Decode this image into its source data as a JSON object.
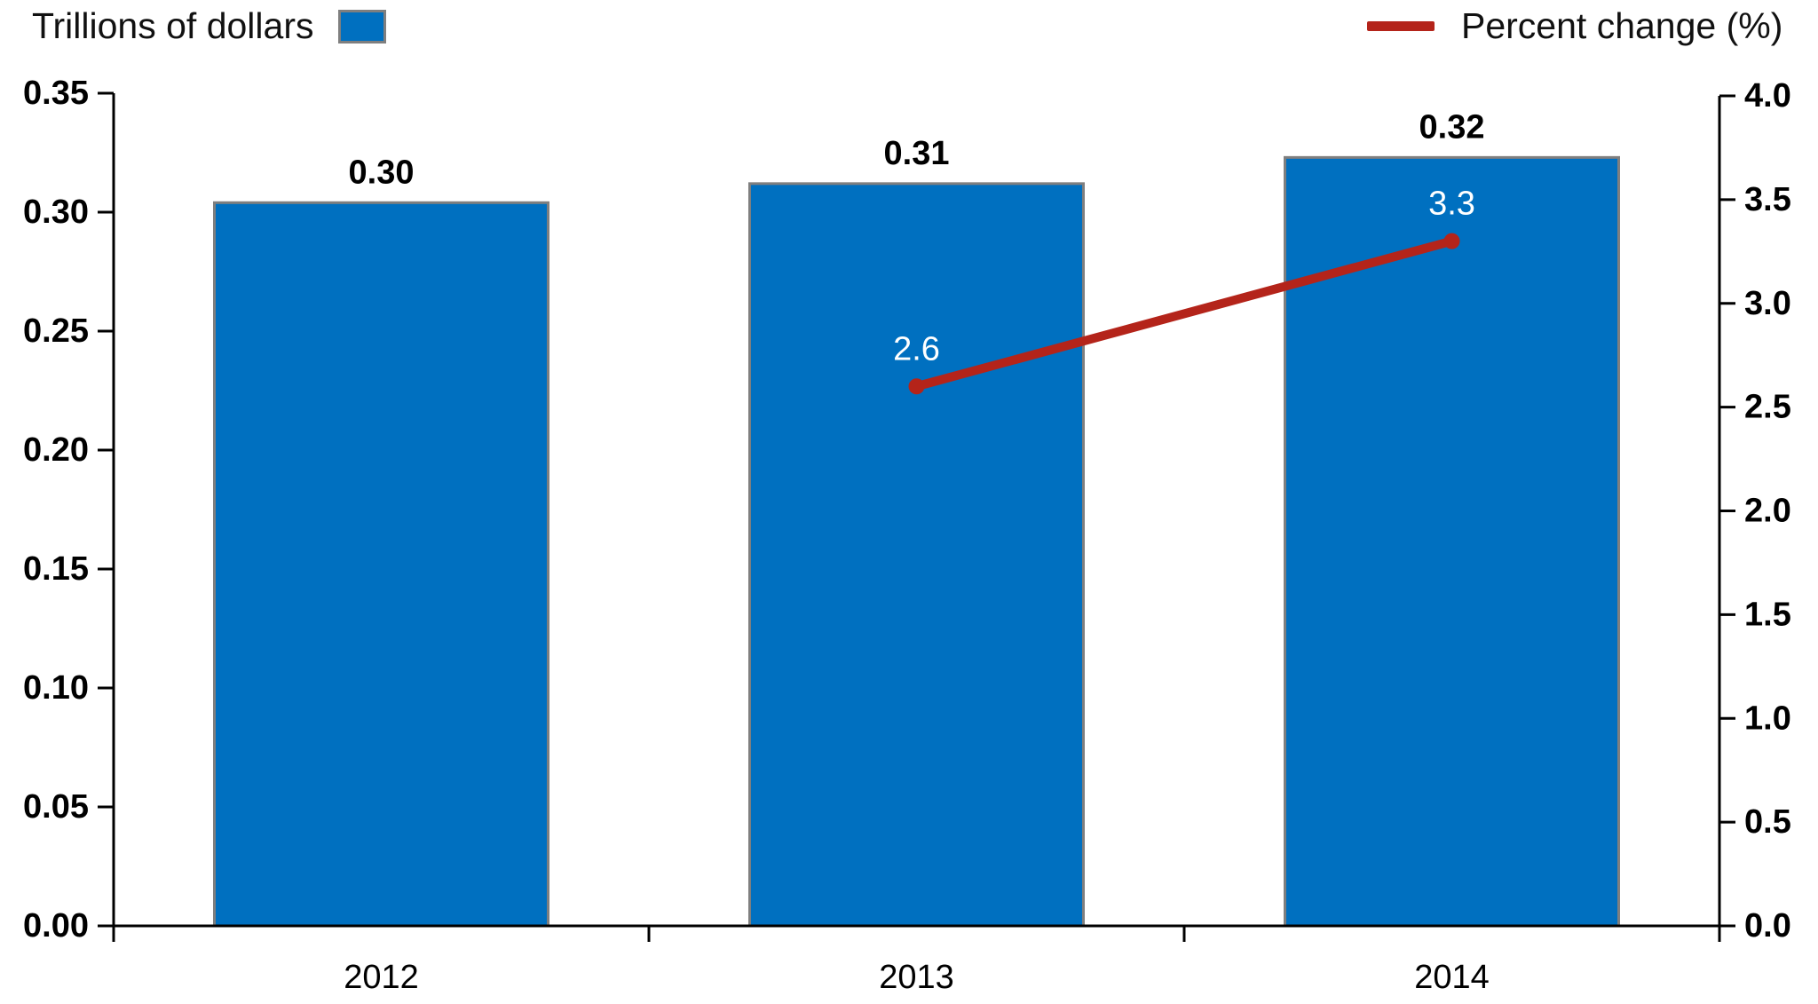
{
  "legend": {
    "bars": {
      "label": "Trillions of dollars",
      "color": "#0070C0",
      "border_color": "#7F7F7F"
    },
    "line": {
      "label": "Percent change (%)",
      "color": "#B4241A"
    }
  },
  "chart_data": {
    "type": "bar",
    "subtype": "combo bar+line, dual axis",
    "categories": [
      "2012",
      "2013",
      "2014"
    ],
    "series": [
      {
        "name": "Trillions of dollars",
        "type": "bar",
        "axis": "left",
        "values": [
          0.304,
          0.312,
          0.323
        ],
        "data_labels": [
          "0.30",
          "0.31",
          "0.32"
        ],
        "color": "#0070C0",
        "border_color": "#7F7F7F",
        "label_color": "#000000"
      },
      {
        "name": "Percent change (%)",
        "type": "line",
        "axis": "right",
        "values": [
          null,
          2.6,
          3.3
        ],
        "data_labels": [
          null,
          "2.6",
          "3.3"
        ],
        "color": "#B4241A",
        "label_color": "#FFFFFF"
      }
    ],
    "left_axis": {
      "min": 0,
      "max": 0.35,
      "step": 0.05,
      "tick_labels": [
        "0.00",
        "0.05",
        "0.10",
        "0.15",
        "0.20",
        "0.25",
        "0.30",
        "0.35"
      ]
    },
    "right_axis": {
      "min": 0,
      "max": 4.0,
      "step": 0.5,
      "tick_labels": [
        "0.0",
        "0.5",
        "1.0",
        "1.5",
        "2.0",
        "2.5",
        "3.0",
        "3.5",
        "4.0"
      ]
    },
    "title": "",
    "xlabel": "",
    "ylabel_left": "Trillions of dollars",
    "ylabel_right": "Percent change (%)",
    "grid": false,
    "legend_position": "top",
    "axis_color": "#000000"
  }
}
